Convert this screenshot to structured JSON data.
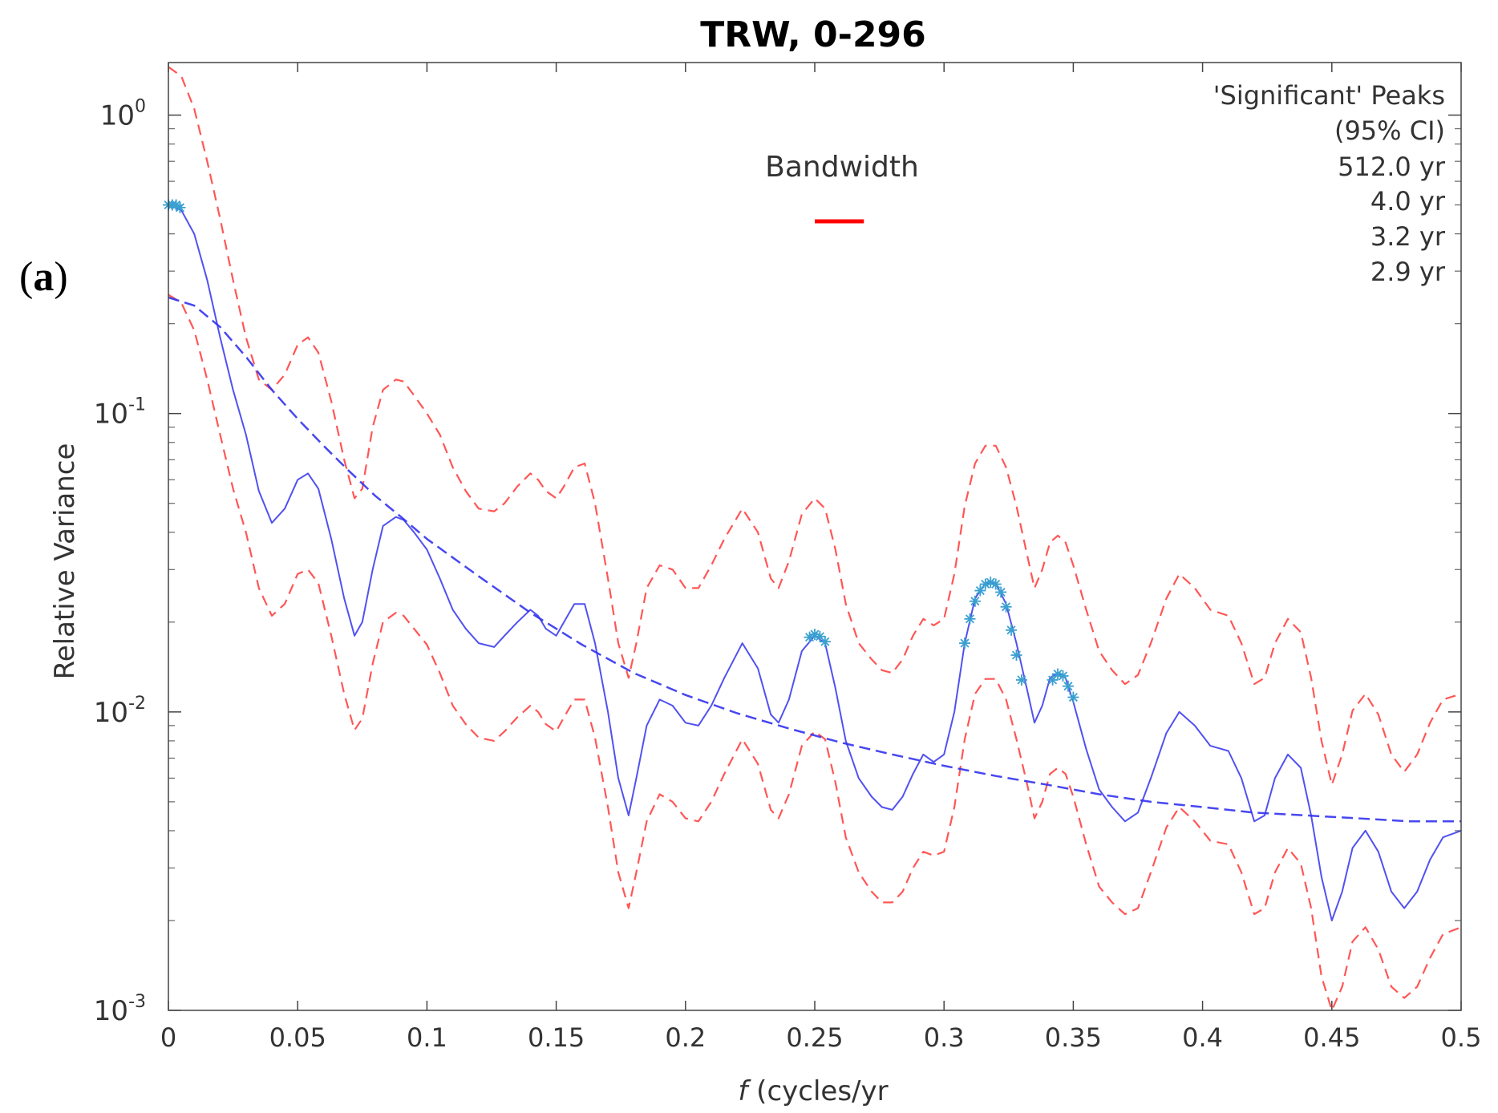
{
  "panel_label": "a",
  "chart_data": {
    "type": "line",
    "title": "TRW, 0-296",
    "xlabel": "f (cycles/yr",
    "xlabel_italic": "f",
    "xlabel_rest": " (cycles/yr",
    "ylabel": "Relative Variance",
    "yscale": "log",
    "xlim": [
      0,
      0.5
    ],
    "ylim": [
      0.001,
      1.5
    ],
    "xticks": [
      0,
      0.05,
      0.1,
      0.15,
      0.2,
      0.25,
      0.3,
      0.35,
      0.4,
      0.45,
      0.5
    ],
    "xtick_labels": [
      "0",
      "0.05",
      "0.1",
      "0.15",
      "0.2",
      "0.25",
      "0.3",
      "0.35",
      "0.4",
      "0.45",
      "0.5"
    ],
    "yticks": [
      {
        "value": 1,
        "base": "10",
        "exp": "0"
      },
      {
        "value": 0.1,
        "base": "10",
        "exp": "-1"
      },
      {
        "value": 0.01,
        "base": "10",
        "exp": "-2"
      },
      {
        "value": 0.001,
        "base": "10",
        "exp": "-3"
      }
    ],
    "legend": {
      "title": "'Significant' Peaks",
      "subtitle": "(95% CI)",
      "entries": [
        "512.0 yr",
        "4.0 yr",
        "3.2 yr",
        "2.9 yr"
      ],
      "placement": "top-right"
    },
    "bandwidth": {
      "label": "Bandwidth",
      "color": "#ff0000",
      "from": 0.25,
      "to": 0.269
    },
    "colors": {
      "spectrum": "#3333ee",
      "ci": "#ff4444",
      "markers": "#3aa0d0"
    },
    "series": [
      {
        "name": "Spectrum",
        "style": "solid",
        "x": [
          0,
          0.005,
          0.01,
          0.015,
          0.02,
          0.025,
          0.03,
          0.035,
          0.04,
          0.045,
          0.05,
          0.054,
          0.058,
          0.063,
          0.068,
          0.072,
          0.075,
          0.079,
          0.083,
          0.088,
          0.091,
          0.095,
          0.1,
          0.105,
          0.11,
          0.115,
          0.12,
          0.126,
          0.13,
          0.135,
          0.14,
          0.143,
          0.146,
          0.15,
          0.153,
          0.157,
          0.161,
          0.165,
          0.17,
          0.174,
          0.178,
          0.181,
          0.185,
          0.19,
          0.195,
          0.2,
          0.205,
          0.21,
          0.215,
          0.222,
          0.228,
          0.233,
          0.236,
          0.24,
          0.245,
          0.25,
          0.254,
          0.258,
          0.262,
          0.267,
          0.272,
          0.276,
          0.28,
          0.284,
          0.288,
          0.292,
          0.296,
          0.3,
          0.304,
          0.308,
          0.312,
          0.316,
          0.32,
          0.324,
          0.328,
          0.332,
          0.335,
          0.338,
          0.341,
          0.344,
          0.347,
          0.35,
          0.355,
          0.36,
          0.365,
          0.37,
          0.375,
          0.38,
          0.386,
          0.391,
          0.397,
          0.403,
          0.41,
          0.415,
          0.42,
          0.424,
          0.428,
          0.433,
          0.438,
          0.442,
          0.446,
          0.45,
          0.454,
          0.458,
          0.463,
          0.468,
          0.473,
          0.478,
          0.483,
          0.488,
          0.493,
          0.5
        ],
        "y": [
          0.5,
          0.48,
          0.4,
          0.28,
          0.18,
          0.12,
          0.085,
          0.055,
          0.043,
          0.048,
          0.06,
          0.063,
          0.056,
          0.038,
          0.024,
          0.018,
          0.02,
          0.03,
          0.042,
          0.045,
          0.044,
          0.04,
          0.035,
          0.028,
          0.022,
          0.019,
          0.017,
          0.0165,
          0.018,
          0.02,
          0.022,
          0.021,
          0.019,
          0.018,
          0.02,
          0.023,
          0.023,
          0.017,
          0.01,
          0.006,
          0.0045,
          0.006,
          0.009,
          0.011,
          0.0105,
          0.0092,
          0.009,
          0.0105,
          0.013,
          0.017,
          0.014,
          0.0098,
          0.0092,
          0.011,
          0.016,
          0.018,
          0.017,
          0.012,
          0.008,
          0.006,
          0.0052,
          0.0048,
          0.0047,
          0.0052,
          0.0062,
          0.0072,
          0.0068,
          0.0072,
          0.01,
          0.017,
          0.024,
          0.027,
          0.027,
          0.023,
          0.017,
          0.012,
          0.0092,
          0.0105,
          0.013,
          0.0135,
          0.013,
          0.0108,
          0.0075,
          0.0055,
          0.0048,
          0.0043,
          0.0046,
          0.006,
          0.0085,
          0.01,
          0.009,
          0.0077,
          0.0074,
          0.006,
          0.0043,
          0.0045,
          0.006,
          0.0072,
          0.0065,
          0.0045,
          0.0028,
          0.002,
          0.0025,
          0.0035,
          0.004,
          0.0034,
          0.0025,
          0.0022,
          0.0025,
          0.0032,
          0.0038,
          0.004
        ]
      },
      {
        "name": "Fitted background",
        "style": "dashed",
        "x": [
          0,
          0.01,
          0.02,
          0.03,
          0.04,
          0.05,
          0.06,
          0.07,
          0.08,
          0.09,
          0.1,
          0.12,
          0.14,
          0.16,
          0.18,
          0.2,
          0.22,
          0.24,
          0.26,
          0.28,
          0.3,
          0.32,
          0.34,
          0.36,
          0.38,
          0.4,
          0.42,
          0.44,
          0.46,
          0.48,
          0.5
        ],
        "y": [
          0.245,
          0.23,
          0.195,
          0.155,
          0.12,
          0.096,
          0.078,
          0.064,
          0.053,
          0.045,
          0.038,
          0.0285,
          0.0215,
          0.0168,
          0.0135,
          0.0114,
          0.0099,
          0.0088,
          0.0079,
          0.0072,
          0.0066,
          0.0061,
          0.0057,
          0.0053,
          0.005,
          0.0048,
          0.0046,
          0.0045,
          0.0044,
          0.0043,
          0.0043
        ]
      },
      {
        "name": "Upper 95% CI",
        "style": "dashed",
        "x": [
          0,
          0.005,
          0.01,
          0.015,
          0.02,
          0.025,
          0.03,
          0.035,
          0.04,
          0.045,
          0.05,
          0.054,
          0.058,
          0.063,
          0.068,
          0.072,
          0.075,
          0.079,
          0.083,
          0.088,
          0.091,
          0.095,
          0.1,
          0.105,
          0.11,
          0.115,
          0.12,
          0.126,
          0.13,
          0.135,
          0.14,
          0.143,
          0.146,
          0.15,
          0.153,
          0.157,
          0.161,
          0.165,
          0.17,
          0.174,
          0.178,
          0.181,
          0.185,
          0.19,
          0.195,
          0.2,
          0.205,
          0.21,
          0.215,
          0.222,
          0.228,
          0.233,
          0.236,
          0.24,
          0.245,
          0.25,
          0.254,
          0.258,
          0.262,
          0.267,
          0.272,
          0.276,
          0.28,
          0.284,
          0.288,
          0.292,
          0.296,
          0.3,
          0.304,
          0.308,
          0.312,
          0.316,
          0.32,
          0.324,
          0.328,
          0.332,
          0.335,
          0.338,
          0.341,
          0.344,
          0.347,
          0.35,
          0.355,
          0.36,
          0.365,
          0.37,
          0.375,
          0.38,
          0.386,
          0.391,
          0.397,
          0.403,
          0.41,
          0.415,
          0.42,
          0.424,
          0.428,
          0.433,
          0.438,
          0.442,
          0.446,
          0.45,
          0.454,
          0.458,
          0.463,
          0.468,
          0.473,
          0.478,
          0.483,
          0.488,
          0.493,
          0.5
        ],
        "y": [
          1.45,
          1.35,
          1.05,
          0.7,
          0.45,
          0.28,
          0.18,
          0.13,
          0.12,
          0.135,
          0.17,
          0.18,
          0.16,
          0.11,
          0.07,
          0.052,
          0.056,
          0.09,
          0.12,
          0.13,
          0.128,
          0.115,
          0.1,
          0.085,
          0.066,
          0.055,
          0.048,
          0.047,
          0.05,
          0.057,
          0.063,
          0.06,
          0.055,
          0.052,
          0.057,
          0.066,
          0.068,
          0.05,
          0.028,
          0.017,
          0.013,
          0.017,
          0.026,
          0.031,
          0.03,
          0.026,
          0.026,
          0.031,
          0.038,
          0.048,
          0.04,
          0.028,
          0.026,
          0.032,
          0.046,
          0.052,
          0.048,
          0.035,
          0.023,
          0.017,
          0.015,
          0.0138,
          0.0135,
          0.015,
          0.018,
          0.0205,
          0.0195,
          0.0205,
          0.029,
          0.049,
          0.068,
          0.078,
          0.078,
          0.066,
          0.049,
          0.034,
          0.026,
          0.03,
          0.037,
          0.039,
          0.037,
          0.031,
          0.022,
          0.016,
          0.0138,
          0.0124,
          0.0133,
          0.017,
          0.024,
          0.029,
          0.026,
          0.022,
          0.021,
          0.017,
          0.0124,
          0.013,
          0.017,
          0.0205,
          0.0185,
          0.013,
          0.008,
          0.0057,
          0.0072,
          0.0101,
          0.0115,
          0.0098,
          0.0072,
          0.0063,
          0.0072,
          0.0092,
          0.011,
          0.0115
        ]
      },
      {
        "name": "Lower 95% CI",
        "style": "dashed",
        "x": [
          0,
          0.005,
          0.01,
          0.015,
          0.02,
          0.025,
          0.03,
          0.035,
          0.04,
          0.045,
          0.05,
          0.054,
          0.058,
          0.063,
          0.068,
          0.072,
          0.075,
          0.079,
          0.083,
          0.088,
          0.091,
          0.095,
          0.1,
          0.105,
          0.11,
          0.115,
          0.12,
          0.126,
          0.13,
          0.135,
          0.14,
          0.143,
          0.146,
          0.15,
          0.153,
          0.157,
          0.161,
          0.165,
          0.17,
          0.174,
          0.178,
          0.181,
          0.185,
          0.19,
          0.195,
          0.2,
          0.205,
          0.21,
          0.215,
          0.222,
          0.228,
          0.233,
          0.236,
          0.24,
          0.245,
          0.25,
          0.254,
          0.258,
          0.262,
          0.267,
          0.272,
          0.276,
          0.28,
          0.284,
          0.288,
          0.292,
          0.296,
          0.3,
          0.304,
          0.308,
          0.312,
          0.316,
          0.32,
          0.324,
          0.328,
          0.332,
          0.335,
          0.338,
          0.341,
          0.344,
          0.347,
          0.35,
          0.355,
          0.36,
          0.365,
          0.37,
          0.375,
          0.38,
          0.386,
          0.391,
          0.397,
          0.403,
          0.41,
          0.415,
          0.42,
          0.424,
          0.428,
          0.433,
          0.438,
          0.442,
          0.446,
          0.45,
          0.454,
          0.458,
          0.463,
          0.468,
          0.473,
          0.478,
          0.483,
          0.488,
          0.493,
          0.5
        ],
        "y": [
          0.25,
          0.235,
          0.19,
          0.13,
          0.085,
          0.056,
          0.04,
          0.026,
          0.021,
          0.023,
          0.029,
          0.03,
          0.027,
          0.018,
          0.0115,
          0.0087,
          0.0095,
          0.0145,
          0.02,
          0.0215,
          0.021,
          0.019,
          0.0168,
          0.0135,
          0.0105,
          0.0091,
          0.0082,
          0.008,
          0.0086,
          0.0096,
          0.0105,
          0.01,
          0.0091,
          0.0086,
          0.0096,
          0.011,
          0.011,
          0.0082,
          0.0048,
          0.0029,
          0.0022,
          0.0029,
          0.0043,
          0.0053,
          0.005,
          0.0044,
          0.0043,
          0.005,
          0.0062,
          0.0081,
          0.0067,
          0.0047,
          0.0044,
          0.0053,
          0.0077,
          0.0086,
          0.0081,
          0.0058,
          0.0038,
          0.0029,
          0.0025,
          0.0023,
          0.0023,
          0.0025,
          0.003,
          0.0034,
          0.0033,
          0.0034,
          0.0048,
          0.0081,
          0.0115,
          0.0129,
          0.0129,
          0.011,
          0.0081,
          0.0058,
          0.0044,
          0.005,
          0.0062,
          0.0065,
          0.0062,
          0.0052,
          0.0036,
          0.0026,
          0.0023,
          0.0021,
          0.0022,
          0.0029,
          0.0041,
          0.0048,
          0.0043,
          0.0037,
          0.0036,
          0.0029,
          0.0021,
          0.0022,
          0.0029,
          0.0035,
          0.0031,
          0.0022,
          0.0013,
          0.001,
          0.0012,
          0.0017,
          0.0019,
          0.0016,
          0.0012,
          0.0011,
          0.0012,
          0.0015,
          0.0018,
          0.0019
        ]
      }
    ],
    "significant_points": [
      {
        "x": 0.0,
        "y": 0.5
      },
      {
        "x": 0.0015,
        "y": 0.5
      },
      {
        "x": 0.003,
        "y": 0.5
      },
      {
        "x": 0.0045,
        "y": 0.49
      },
      {
        "x": 0.248,
        "y": 0.0178
      },
      {
        "x": 0.25,
        "y": 0.0182
      },
      {
        "x": 0.252,
        "y": 0.0179
      },
      {
        "x": 0.254,
        "y": 0.0172
      },
      {
        "x": 0.308,
        "y": 0.017
      },
      {
        "x": 0.31,
        "y": 0.0205
      },
      {
        "x": 0.312,
        "y": 0.0235
      },
      {
        "x": 0.314,
        "y": 0.0255
      },
      {
        "x": 0.316,
        "y": 0.0268
      },
      {
        "x": 0.318,
        "y": 0.0272
      },
      {
        "x": 0.32,
        "y": 0.0268
      },
      {
        "x": 0.322,
        "y": 0.0252
      },
      {
        "x": 0.324,
        "y": 0.0225
      },
      {
        "x": 0.326,
        "y": 0.0188
      },
      {
        "x": 0.328,
        "y": 0.0155
      },
      {
        "x": 0.33,
        "y": 0.0128
      },
      {
        "x": 0.342,
        "y": 0.0128
      },
      {
        "x": 0.344,
        "y": 0.0134
      },
      {
        "x": 0.346,
        "y": 0.0132
      },
      {
        "x": 0.348,
        "y": 0.0122
      },
      {
        "x": 0.35,
        "y": 0.0112
      }
    ]
  }
}
